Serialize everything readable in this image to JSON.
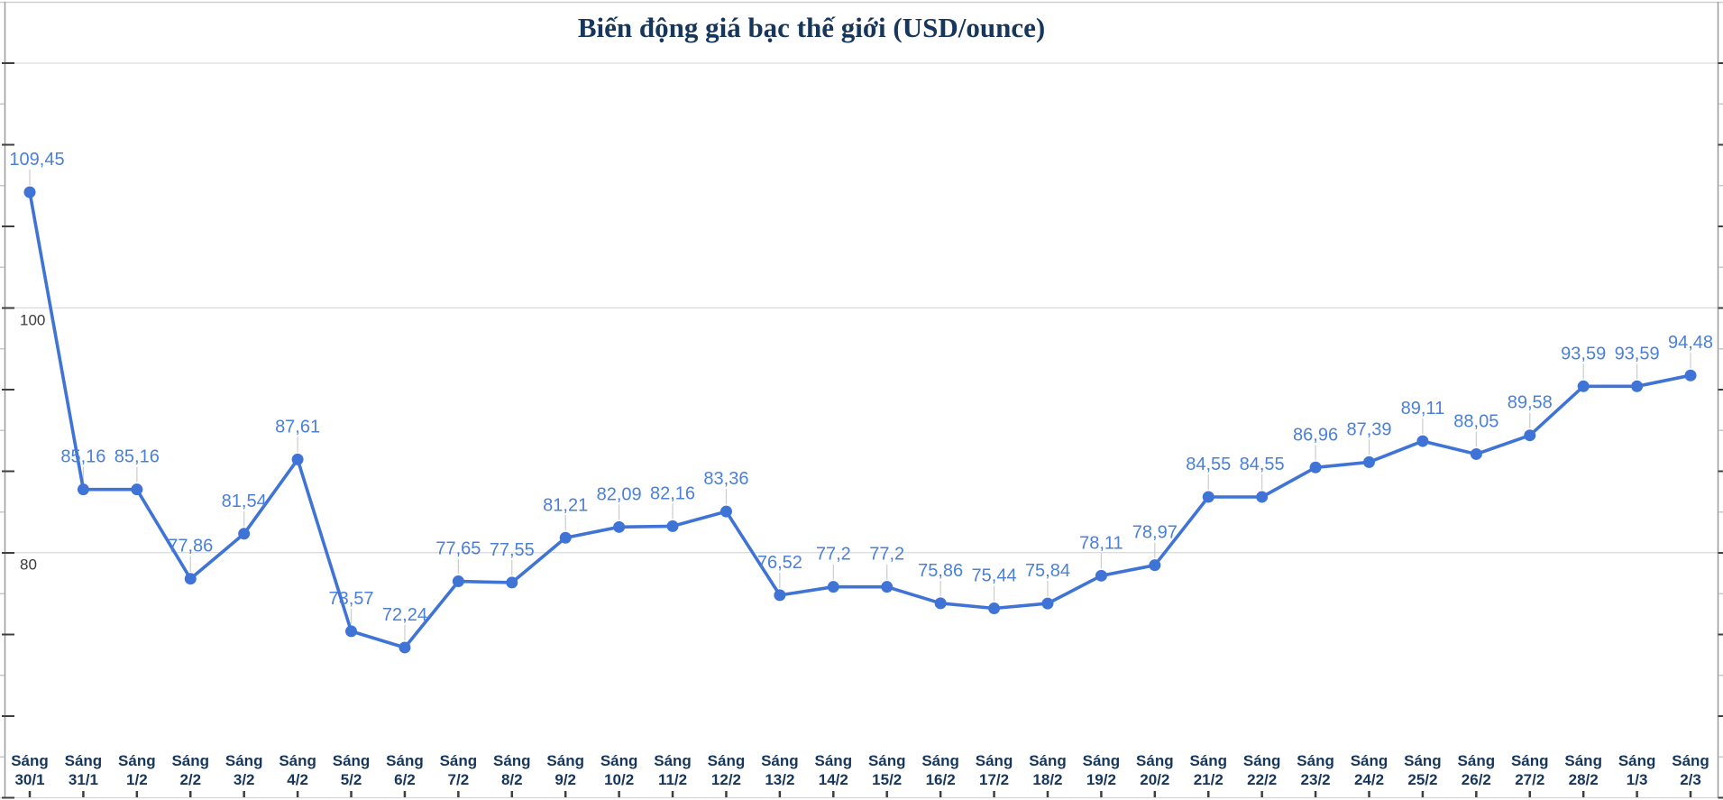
{
  "chart_data": {
    "type": "line",
    "title": "Biến động giá bạc thế giới (USD/ounce)",
    "unit": "USD/ounce",
    "categories": [
      [
        "Sáng",
        "30/1"
      ],
      [
        "Sáng",
        "31/1"
      ],
      [
        "Sáng",
        "1/2"
      ],
      [
        "Sáng",
        "2/2"
      ],
      [
        "Sáng",
        "3/2"
      ],
      [
        "Sáng",
        "4/2"
      ],
      [
        "Sáng",
        "5/2"
      ],
      [
        "Sáng",
        "6/2"
      ],
      [
        "Sáng",
        "7/2"
      ],
      [
        "Sáng",
        "8/2"
      ],
      [
        "Sáng",
        "9/2"
      ],
      [
        "Sáng",
        "10/2"
      ],
      [
        "Sáng",
        "11/2"
      ],
      [
        "Sáng",
        "12/2"
      ],
      [
        "Sáng",
        "13/2"
      ],
      [
        "Sáng",
        "14/2"
      ],
      [
        "Sáng",
        "15/2"
      ],
      [
        "Sáng",
        "16/2"
      ],
      [
        "Sáng",
        "17/2"
      ],
      [
        "Sáng",
        "18/2"
      ],
      [
        "Sáng",
        "19/2"
      ],
      [
        "Sáng",
        "20/2"
      ],
      [
        "Sáng",
        "21/2"
      ],
      [
        "Sáng",
        "22/2"
      ],
      [
        "Sáng",
        "23/2"
      ],
      [
        "Sáng",
        "24/2"
      ],
      [
        "Sáng",
        "25/2"
      ],
      [
        "Sáng",
        "26/2"
      ],
      [
        "Sáng",
        "27/2"
      ],
      [
        "Sáng",
        "28/2"
      ],
      [
        "Sáng",
        "1/3"
      ],
      [
        "Sáng",
        "2/3"
      ]
    ],
    "values": [
      109.45,
      85.16,
      85.16,
      77.86,
      81.54,
      87.61,
      73.57,
      72.24,
      77.65,
      77.55,
      81.21,
      82.09,
      82.16,
      83.36,
      76.52,
      77.2,
      77.2,
      75.86,
      75.44,
      75.84,
      78.11,
      78.97,
      84.55,
      84.55,
      86.96,
      87.39,
      89.11,
      88.05,
      89.58,
      93.59,
      93.59,
      94.48
    ],
    "display_labels": [
      "109,45",
      "85,16",
      "85,16",
      "77,86",
      "81,54",
      "87,61",
      "73,57",
      "72,24",
      "77,65",
      "77,55",
      "81,21",
      "82,09",
      "82,16",
      "83,36",
      "76,52",
      "77,2",
      "77,2",
      "75,86",
      "75,44",
      "75,84",
      "78,11",
      "78,97",
      "84,55",
      "84,55",
      "86,96",
      "87,39",
      "89,11",
      "88,05",
      "89,58",
      "93,59",
      "93,59",
      "94,48"
    ],
    "xlabel": "",
    "ylabel": "",
    "ylim": [
      60,
      120
    ],
    "y_axis_labels": [
      "100",
      "80"
    ],
    "y_labeled_gridline_values": [
      100,
      80
    ],
    "grid": true,
    "legend": "none",
    "colors": {
      "series_line": "#3f74d6",
      "series_marker": "#3f74d6",
      "data_label": "#4b80d8",
      "title_text": "#16365c",
      "x_label_text": "#16365c",
      "y_label_text": "#3c3c3c",
      "gridline": "#dcdcdc",
      "axis_line": "#9b9b9b",
      "major_tick": "#3f3f3f",
      "minor_tick": "#c9c9c9",
      "leader_line": "#cccccc",
      "background": "#ffffff"
    }
  }
}
